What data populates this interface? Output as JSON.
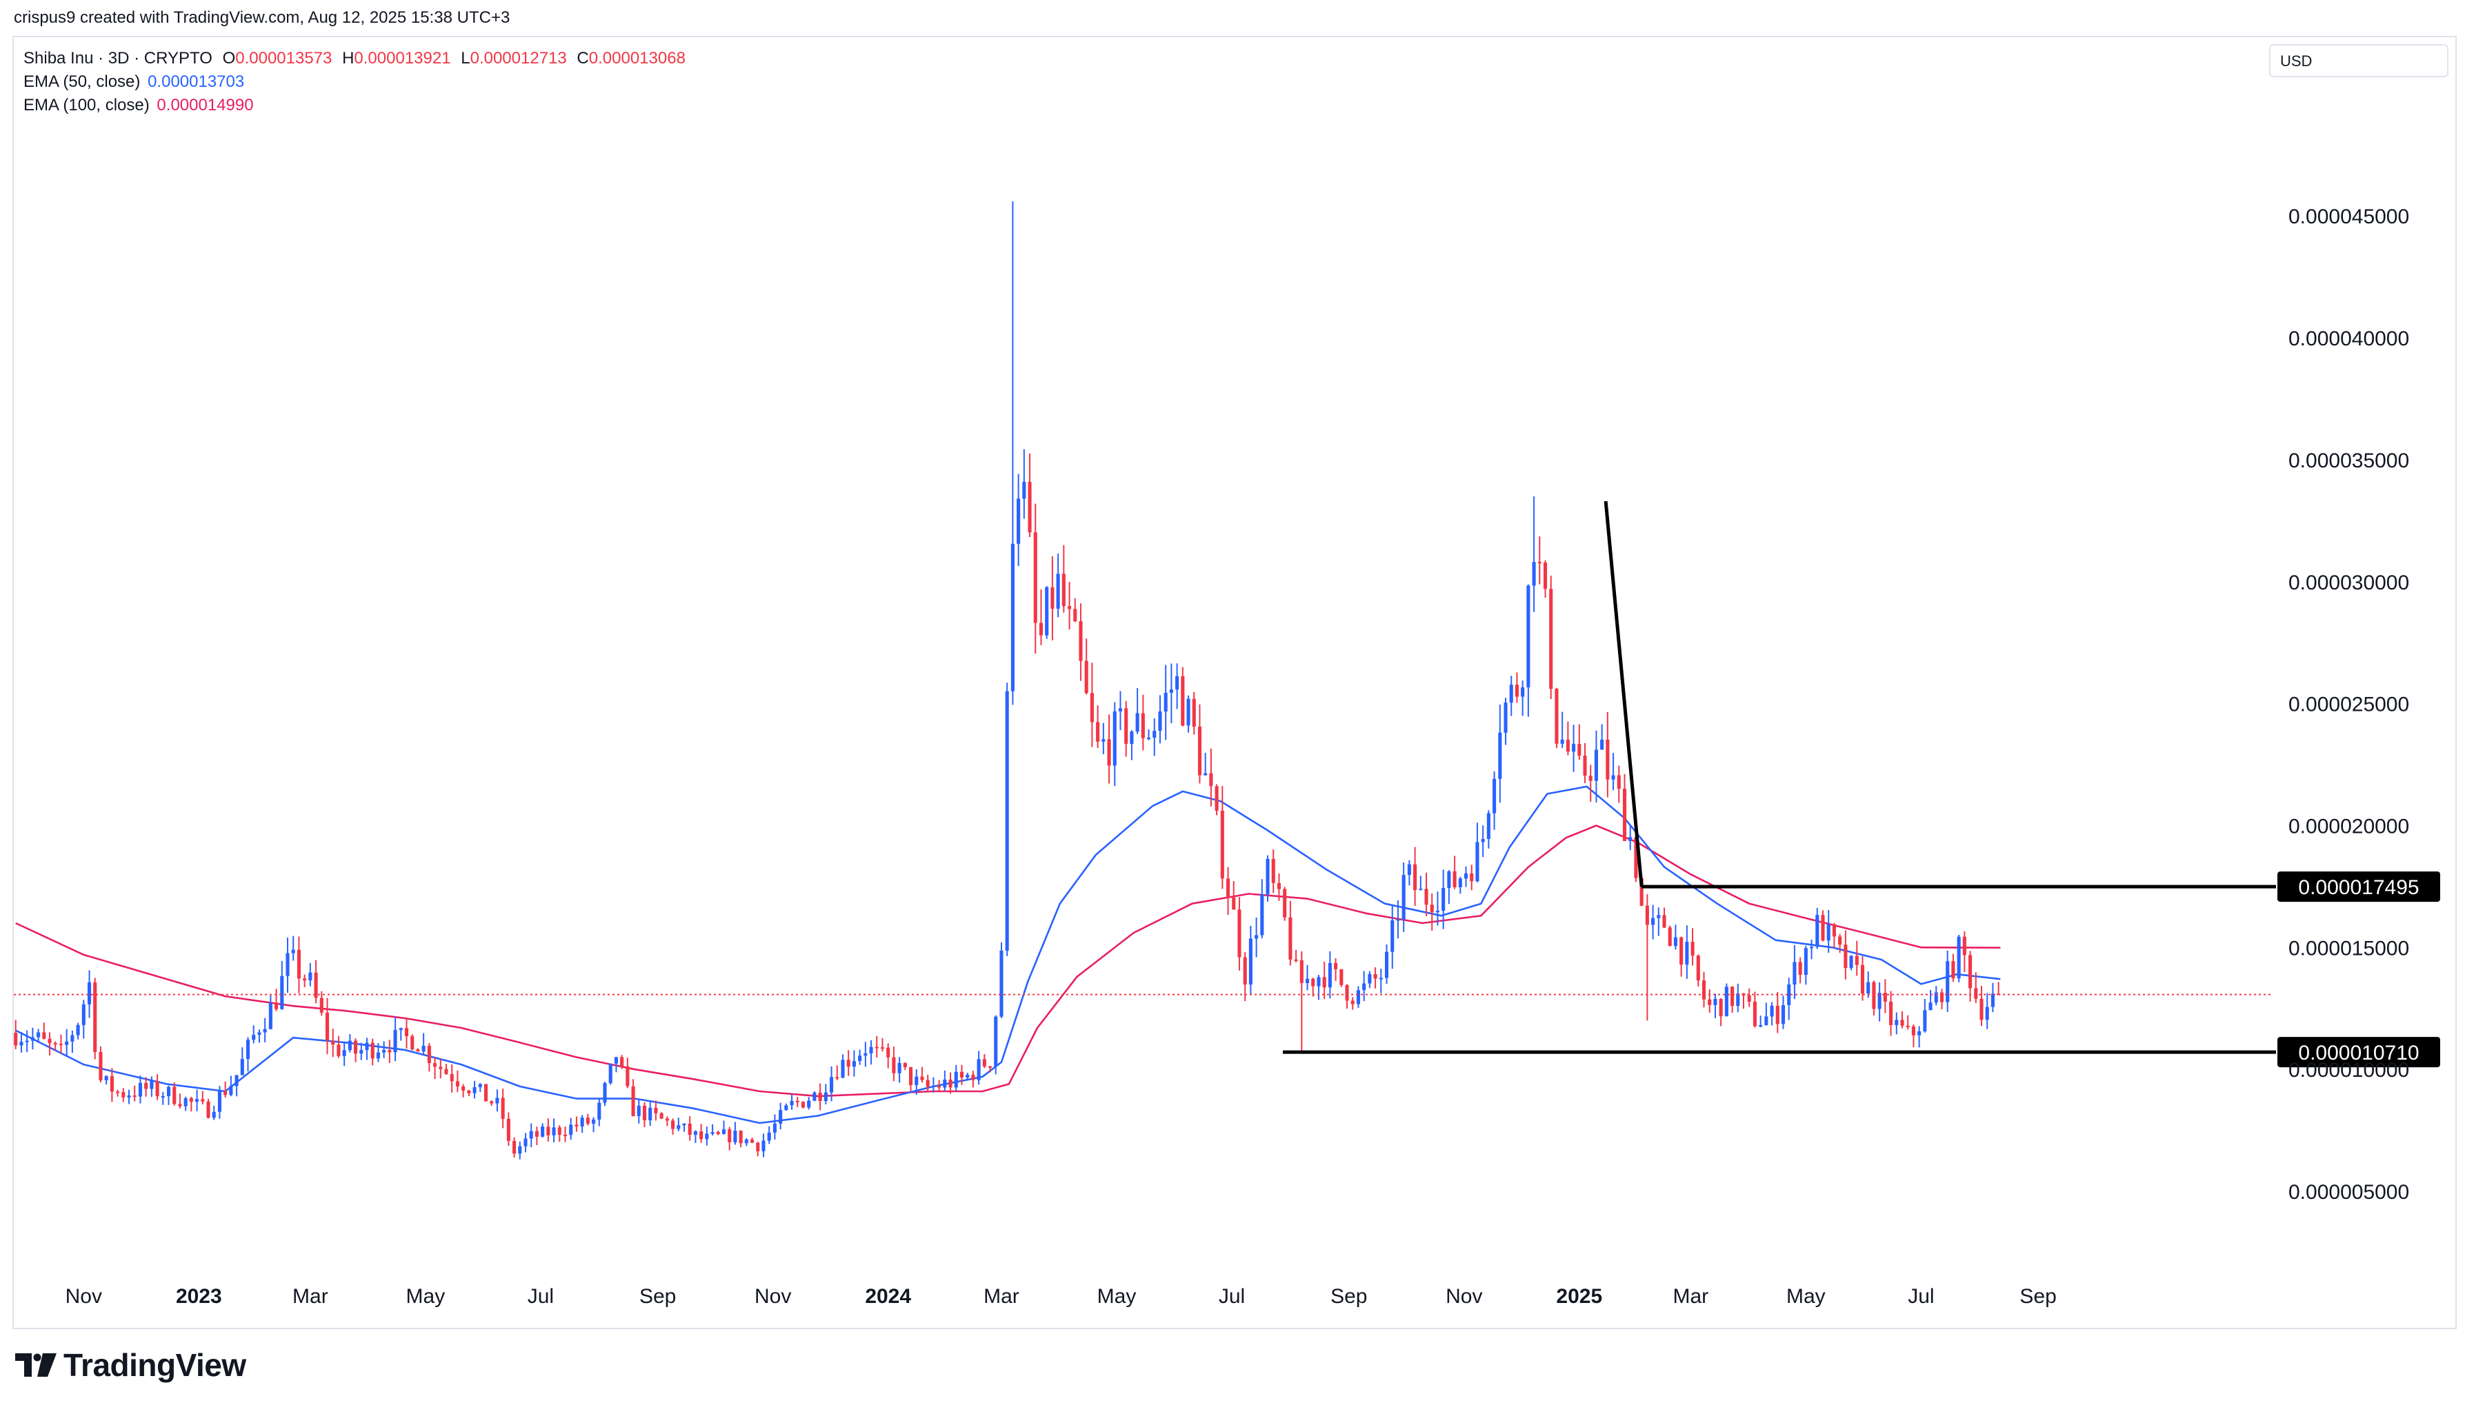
{
  "header": {
    "text": "crispus9 created with TradingView.com, Aug 12, 2025 15:38 UTC+3"
  },
  "legend": {
    "symbol": "Shiba Inu · 3D · CRYPTO",
    "ohlc": [
      {
        "key": "O",
        "value": "0.000013573"
      },
      {
        "key": "H",
        "value": "0.000013921"
      },
      {
        "key": "L",
        "value": "0.000012713"
      },
      {
        "key": "C",
        "value": "0.000013068"
      }
    ],
    "ema50_label": "EMA (50, close)",
    "ema50_value": "0.000013703",
    "ema100_label": "EMA (100, close)",
    "ema100_value": "0.000014990"
  },
  "currency": "USD",
  "footer": {
    "brand": "TradingView"
  },
  "colors": {
    "up": "#2962ff",
    "down": "#f23645",
    "ema50": "#2962ff",
    "ema100": "#e91e63",
    "last_price_line": "#f23645",
    "annotation": "#000000",
    "axis_text": "#131722"
  },
  "chart_data": {
    "type": "candlestick",
    "title": "Shiba Inu · 3D · CRYPTO",
    "y_axis_labels": [
      "0.000045000",
      "0.000040000",
      "0.000035000",
      "0.000030000",
      "0.000025000",
      "0.000020000",
      "0.000015000",
      "0.000010000",
      "0.000005000"
    ],
    "y_axis_values": [
      4.5e-05,
      4e-05,
      3.5e-05,
      3e-05,
      2.5e-05,
      2e-05,
      1.5e-05,
      1e-05,
      5e-06
    ],
    "y_axis_position": "right",
    "x_axis_labels": [
      {
        "label": "Nov",
        "date": "2022-11-01",
        "bold": false
      },
      {
        "label": "2023",
        "date": "2023-01-01",
        "bold": true
      },
      {
        "label": "Mar",
        "date": "2023-03-01",
        "bold": false
      },
      {
        "label": "May",
        "date": "2023-05-01",
        "bold": false
      },
      {
        "label": "Jul",
        "date": "2023-07-01",
        "bold": false
      },
      {
        "label": "Sep",
        "date": "2023-09-01",
        "bold": false
      },
      {
        "label": "Nov",
        "date": "2023-11-01",
        "bold": false
      },
      {
        "label": "2024",
        "date": "2024-01-01",
        "bold": true
      },
      {
        "label": "Mar",
        "date": "2024-03-01",
        "bold": false
      },
      {
        "label": "May",
        "date": "2024-05-01",
        "bold": false
      },
      {
        "label": "Jul",
        "date": "2024-07-01",
        "bold": false
      },
      {
        "label": "Sep",
        "date": "2024-09-01",
        "bold": false
      },
      {
        "label": "Nov",
        "date": "2024-11-01",
        "bold": false
      },
      {
        "label": "2025",
        "date": "2025-01-01",
        "bold": true
      },
      {
        "label": "Mar",
        "date": "2025-03-01",
        "bold": false
      },
      {
        "label": "May",
        "date": "2025-05-01",
        "bold": false
      },
      {
        "label": "Jul",
        "date": "2025-07-01",
        "bold": false
      },
      {
        "label": "Sep",
        "date": "2025-09-01",
        "bold": false
      }
    ],
    "x_range": [
      "2022-09-25",
      "2025-12-25"
    ],
    "y_range": [
      2.4e-06,
      4.82e-05
    ],
    "grid": false,
    "last_close": 1.3068e-05,
    "horizontal_levels": [
      {
        "label": "0.000017495",
        "value": 1.7495e-05,
        "from": "2025-02-03",
        "to": "2025-10-28"
      },
      {
        "label": "0.000010710",
        "value": 1.071e-05,
        "from": "2024-07-28",
        "to": "2025-10-28"
      }
    ],
    "trendline": {
      "from": {
        "date": "2025-01-15",
        "value": 3.33e-05
      },
      "to": {
        "date": "2025-02-03",
        "value": 1.7495e-05
      }
    },
    "series": [
      {
        "name": "EMA (50, close)",
        "points": [
          [
            "2022-09-26",
            1.16e-05
          ],
          [
            "2022-11-01",
            1.02e-05
          ],
          [
            "2022-12-15",
            9.4e-06
          ],
          [
            "2023-01-15",
            9.1e-06
          ],
          [
            "2023-02-20",
            1.13e-05
          ],
          [
            "2023-03-20",
            1.11e-05
          ],
          [
            "2023-04-20",
            1.08e-05
          ],
          [
            "2023-05-20",
            1.02e-05
          ],
          [
            "2023-06-20",
            9.3e-06
          ],
          [
            "2023-07-20",
            8.8e-06
          ],
          [
            "2023-08-20",
            8.8e-06
          ],
          [
            "2023-09-20",
            8.4e-06
          ],
          [
            "2023-10-25",
            7.8e-06
          ],
          [
            "2023-11-25",
            8.1e-06
          ],
          [
            "2023-12-25",
            8.7e-06
          ],
          [
            "2024-01-25",
            9.3e-06
          ],
          [
            "2024-02-20",
            9.7e-06
          ],
          [
            "2024-03-01",
            1.03e-05
          ],
          [
            "2024-03-15",
            1.36e-05
          ],
          [
            "2024-04-01",
            1.68e-05
          ],
          [
            "2024-04-20",
            1.88e-05
          ],
          [
            "2024-05-20",
            2.08e-05
          ],
          [
            "2024-06-05",
            2.14e-05
          ],
          [
            "2024-06-25",
            2.1e-05
          ],
          [
            "2024-07-20",
            1.98e-05
          ],
          [
            "2024-08-20",
            1.82e-05
          ],
          [
            "2024-09-20",
            1.68e-05
          ],
          [
            "2024-10-20",
            1.63e-05
          ],
          [
            "2024-11-10",
            1.68e-05
          ],
          [
            "2024-11-25",
            1.91e-05
          ],
          [
            "2024-12-15",
            2.13e-05
          ],
          [
            "2025-01-05",
            2.16e-05
          ],
          [
            "2025-01-25",
            2.03e-05
          ],
          [
            "2025-02-15",
            1.83e-05
          ],
          [
            "2025-03-15",
            1.68e-05
          ],
          [
            "2025-04-15",
            1.53e-05
          ],
          [
            "2025-05-15",
            1.5e-05
          ],
          [
            "2025-06-10",
            1.45e-05
          ],
          [
            "2025-07-01",
            1.35e-05
          ],
          [
            "2025-07-20",
            1.39e-05
          ],
          [
            "2025-08-12",
            1.3703e-05
          ]
        ]
      },
      {
        "name": "EMA (100, close)",
        "points": [
          [
            "2022-09-26",
            1.6e-05
          ],
          [
            "2022-11-01",
            1.47e-05
          ],
          [
            "2022-12-15",
            1.37e-05
          ],
          [
            "2023-01-15",
            1.3e-05
          ],
          [
            "2023-02-20",
            1.26e-05
          ],
          [
            "2023-03-20",
            1.24e-05
          ],
          [
            "2023-04-20",
            1.21e-05
          ],
          [
            "2023-05-20",
            1.17e-05
          ],
          [
            "2023-06-20",
            1.11e-05
          ],
          [
            "2023-07-20",
            1.05e-05
          ],
          [
            "2023-08-20",
            1e-05
          ],
          [
            "2023-09-20",
            9.6e-06
          ],
          [
            "2023-10-25",
            9.1e-06
          ],
          [
            "2023-11-25",
            8.9e-06
          ],
          [
            "2023-12-25",
            9e-06
          ],
          [
            "2024-01-25",
            9.1e-06
          ],
          [
            "2024-02-20",
            9.1e-06
          ],
          [
            "2024-03-05",
            9.4e-06
          ],
          [
            "2024-03-20",
            1.17e-05
          ],
          [
            "2024-04-10",
            1.38e-05
          ],
          [
            "2024-05-10",
            1.56e-05
          ],
          [
            "2024-06-10",
            1.68e-05
          ],
          [
            "2024-07-10",
            1.72e-05
          ],
          [
            "2024-08-10",
            1.7e-05
          ],
          [
            "2024-09-10",
            1.64e-05
          ],
          [
            "2024-10-10",
            1.6e-05
          ],
          [
            "2024-11-10",
            1.63e-05
          ],
          [
            "2024-12-05",
            1.83e-05
          ],
          [
            "2024-12-25",
            1.95e-05
          ],
          [
            "2025-01-10",
            2e-05
          ],
          [
            "2025-02-01",
            1.93e-05
          ],
          [
            "2025-03-01",
            1.8e-05
          ],
          [
            "2025-04-01",
            1.68e-05
          ],
          [
            "2025-05-01",
            1.62e-05
          ],
          [
            "2025-06-01",
            1.56e-05
          ],
          [
            "2025-07-01",
            1.5e-05
          ],
          [
            "2025-08-12",
            1.499e-05
          ]
        ]
      }
    ],
    "candles_path": [
      [
        "2022-09-26",
        1.15e-05
      ],
      [
        "2022-10-08",
        1.12e-05
      ],
      [
        "2022-10-20",
        1.06e-05
      ],
      [
        "2022-10-29",
        1.2e-05
      ],
      [
        "2022-11-04",
        1.35e-05
      ],
      [
        "2022-11-09",
        9.6e-06
      ],
      [
        "2022-11-20",
        9e-06
      ],
      [
        "2022-12-05",
        9.2e-06
      ],
      [
        "2022-12-20",
        8.9e-06
      ],
      [
        "2023-01-05",
        8.3e-06
      ],
      [
        "2023-01-20",
        9.6e-06
      ],
      [
        "2023-02-01",
        1.17e-05
      ],
      [
        "2023-02-10",
        1.27e-05
      ],
      [
        "2023-02-18",
        1.45e-05
      ],
      [
        "2023-03-01",
        1.35e-05
      ],
      [
        "2023-03-12",
        1.09e-05
      ],
      [
        "2023-03-25",
        1.07e-05
      ],
      [
        "2023-04-15",
        1.12e-05
      ],
      [
        "2023-04-25",
        1.13e-05
      ],
      [
        "2023-05-10",
        1e-05
      ],
      [
        "2023-05-30",
        9e-06
      ],
      [
        "2023-06-10",
        8.4e-06
      ],
      [
        "2023-06-15",
        6.5e-06
      ],
      [
        "2023-06-25",
        7.2e-06
      ],
      [
        "2023-07-10",
        7.5e-06
      ],
      [
        "2023-07-30",
        7.9e-06
      ],
      [
        "2023-08-10",
        1.06e-05
      ],
      [
        "2023-08-18",
        8.4e-06
      ],
      [
        "2023-09-10",
        7.7e-06
      ],
      [
        "2023-09-25",
        7.1e-06
      ],
      [
        "2023-10-10",
        7.3e-06
      ],
      [
        "2023-10-25",
        6.9e-06
      ],
      [
        "2023-11-10",
        8.5e-06
      ],
      [
        "2023-11-25",
        9e-06
      ],
      [
        "2023-12-05",
        1.01e-05
      ],
      [
        "2023-12-20",
        1.09e-05
      ],
      [
        "2024-01-05",
        1.01e-05
      ],
      [
        "2024-01-20",
        9.2e-06
      ],
      [
        "2024-02-10",
        9.6e-06
      ],
      [
        "2024-02-25",
        1.05e-05
      ],
      [
        "2024-03-01",
        1.5e-05
      ],
      [
        "2024-03-05",
        2.8e-05
      ],
      [
        "2024-03-08",
        3.5e-05
      ],
      [
        "2024-03-14",
        3.3e-05
      ],
      [
        "2024-03-20",
        2.7e-05
      ],
      [
        "2024-03-30",
        3e-05
      ],
      [
        "2024-04-10",
        2.7e-05
      ],
      [
        "2024-04-20",
        2.3e-05
      ],
      [
        "2024-05-05",
        2.4e-05
      ],
      [
        "2024-05-20",
        2.4e-05
      ],
      [
        "2024-06-01",
        2.6e-05
      ],
      [
        "2024-06-10",
        2.4e-05
      ],
      [
        "2024-06-20",
        2.1e-05
      ],
      [
        "2024-06-30",
        1.7e-05
      ],
      [
        "2024-07-08",
        1.4e-05
      ],
      [
        "2024-07-20",
        1.8e-05
      ],
      [
        "2024-07-29",
        1.6e-05
      ],
      [
        "2024-08-05",
        1.35e-05
      ],
      [
        "2024-08-20",
        1.4e-05
      ],
      [
        "2024-09-05",
        1.3e-05
      ],
      [
        "2024-09-20",
        1.4e-05
      ],
      [
        "2024-10-01",
        1.8e-05
      ],
      [
        "2024-10-10",
        1.7e-05
      ],
      [
        "2024-10-25",
        1.75e-05
      ],
      [
        "2024-11-10",
        1.9e-05
      ],
      [
        "2024-11-20",
        2.45e-05
      ],
      [
        "2024-12-01",
        2.6e-05
      ],
      [
        "2024-12-08",
        3.2e-05
      ],
      [
        "2024-12-15",
        2.8e-05
      ],
      [
        "2024-12-20",
        2.4e-05
      ],
      [
        "2025-01-01",
        2.2e-05
      ],
      [
        "2025-01-12",
        2.3e-05
      ],
      [
        "2025-01-22",
        2.1e-05
      ],
      [
        "2025-01-30",
        1.9e-05
      ],
      [
        "2025-02-05",
        1.55e-05
      ],
      [
        "2025-02-15",
        1.6e-05
      ],
      [
        "2025-02-28",
        1.45e-05
      ],
      [
        "2025-03-10",
        1.25e-05
      ],
      [
        "2025-03-25",
        1.3e-05
      ],
      [
        "2025-04-05",
        1.2e-05
      ],
      [
        "2025-04-15",
        1.22e-05
      ],
      [
        "2025-04-25",
        1.4e-05
      ],
      [
        "2025-05-08",
        1.6e-05
      ],
      [
        "2025-05-20",
        1.45e-05
      ],
      [
        "2025-06-01",
        1.35e-05
      ],
      [
        "2025-06-15",
        1.2e-05
      ],
      [
        "2025-06-25",
        1.13e-05
      ],
      [
        "2025-07-10",
        1.3e-05
      ],
      [
        "2025-07-22",
        1.5e-05
      ],
      [
        "2025-08-01",
        1.25e-05
      ],
      [
        "2025-08-12",
        1.3068e-05
      ]
    ],
    "spikes": [
      [
        "2024-03-05",
        4.56e-05
      ],
      [
        "2024-12-08",
        3.35e-05
      ],
      [
        "2024-07-08",
        1.28e-05
      ],
      [
        "2024-08-05",
        1.07e-05
      ],
      [
        "2025-02-05",
        1.2e-05
      ]
    ]
  }
}
